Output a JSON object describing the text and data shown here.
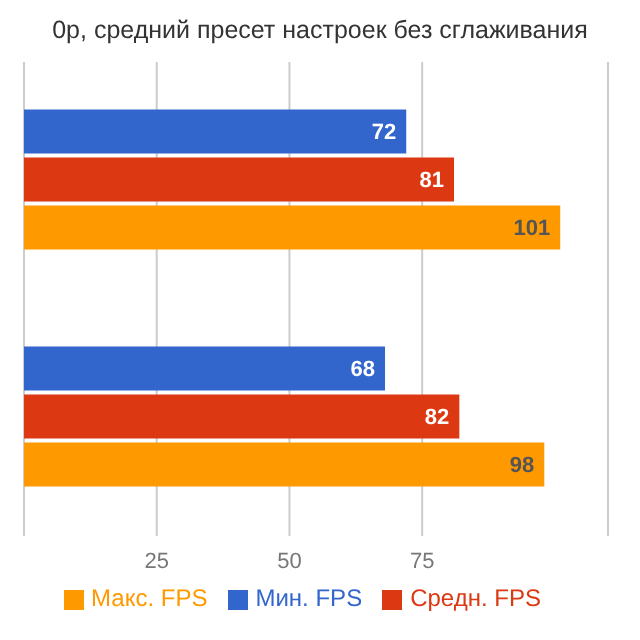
{
  "chart_data": {
    "type": "bar",
    "orientation": "horizontal",
    "title": "0р, средний пресет настроек без сглаживания",
    "categories": [
      null,
      null
    ],
    "series": [
      {
        "name": "Мин. FPS",
        "color": "#3366cc",
        "values": [
          72,
          68
        ]
      },
      {
        "name": "Средн. FPS",
        "color": "#dc3912",
        "values": [
          81,
          82
        ]
      },
      {
        "name": "Макс. FPS",
        "color": "#ff9900",
        "values": [
          101,
          98
        ]
      }
    ],
    "xlim": [
      0,
      110
    ],
    "xticks": [
      25,
      50,
      75
    ],
    "grid": "x",
    "legend": "bottom",
    "data_labels": true
  }
}
